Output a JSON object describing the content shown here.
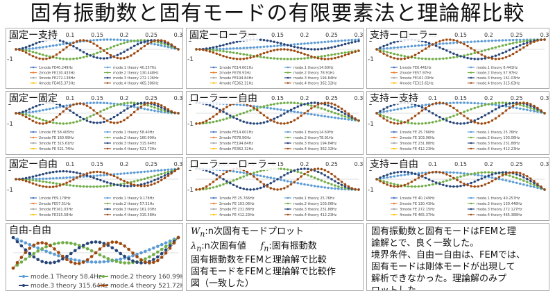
{
  "title": "固有振動数と固有モードの有限要素法と理論解比較",
  "colors": {
    "mode1": "#4472c4",
    "mode2": "#ed7d31",
    "mode3": "#a5a5a5",
    "mode4": "#ffc000",
    "theory1": "#5b9bd5",
    "theory2": "#70ad47",
    "theory3": "#264478",
    "theory4": "#9e480e"
  },
  "chart_data": [
    {
      "type": "line",
      "title": "固定ー支持",
      "bc": "CF",
      "xlim": [
        0,
        0.3
      ],
      "ylim": [
        -1,
        1
      ],
      "x_ticks": [
        "0",
        "0.05",
        "0.1",
        "0.15",
        "0.2",
        "0.25",
        "0.3"
      ],
      "y_ticks": [
        "1",
        "-1"
      ],
      "series": [
        {
          "name": "1mode FE40.249Hz"
        },
        {
          "name": "2mode FE130.433Hz"
        },
        {
          "name": "3mode FE272.138Hz"
        },
        {
          "name": "4mode FE465.373Hz"
        },
        {
          "name": "mode.1 theory 40.257Hz"
        },
        {
          "name": "mode.2 theory 130.448Hz"
        },
        {
          "name": "mode.3 theory 272.126Hz"
        },
        {
          "name": "mode.4 theory 465.386Hz"
        }
      ]
    },
    {
      "type": "line",
      "title": "固定ーローラー",
      "bc": "CR",
      "xlim": [
        0,
        0.3
      ],
      "ylim": [
        -1,
        1
      ],
      "x_ticks": [
        "0",
        "0.05",
        "0.1",
        "0.15",
        "0.2",
        "0.25",
        "0.3"
      ],
      "y_ticks": [
        "1",
        "-1"
      ],
      "series": [
        {
          "name": "1mode FE14.601Hz"
        },
        {
          "name": "2mode FE78.91Hz"
        },
        {
          "name": "3mode FE194.84Hz"
        },
        {
          "name": "4mode FE362.31Hz"
        },
        {
          "name": "mode.1 theory14.60Hz"
        },
        {
          "name": "mode.2 theory 78.91Hz"
        },
        {
          "name": "mode.3 theory 194.84Hz"
        },
        {
          "name": "mode.4 theory 362.32Hz"
        }
      ]
    },
    {
      "type": "line",
      "title": "支持ーローラー",
      "bc": "SR",
      "xlim": [
        0,
        0.3
      ],
      "ylim": [
        -1,
        1
      ],
      "x_ticks": [
        "0",
        "0.05",
        "0.1",
        "0.15",
        "0.2",
        "0.25",
        "0.3"
      ],
      "y_ticks": [
        "1",
        "-1"
      ],
      "series": [
        {
          "name": "1mode FE6.441Hz"
        },
        {
          "name": "2mode FE57.97Hz"
        },
        {
          "name": "3mode FE161.03Hz"
        },
        {
          "name": "4mode FE315.61Hz"
        },
        {
          "name": "mode.1 theory 6.441Hz"
        },
        {
          "name": "mode.2 theory 57.97Hz"
        },
        {
          "name": "mode.3 theory 161.03Hz"
        },
        {
          "name": "mode.4 theory 315.63Hz"
        }
      ]
    },
    {
      "type": "line",
      "title": "固定ー固定",
      "bc": "CC",
      "xlim": [
        0,
        0.3
      ],
      "ylim": [
        -1,
        1
      ],
      "x_ticks": [
        "0",
        "0.05",
        "0.1",
        "0.15",
        "0.2",
        "0.25",
        "0.3"
      ],
      "y_ticks": [
        "1",
        "-1"
      ],
      "series": [
        {
          "name": "1mode FE 58.405Hz"
        },
        {
          "name": "2mode FE 160.99Hz"
        },
        {
          "name": "3mode FE 315.61Hz"
        },
        {
          "name": "4mode FE 521.74Hz"
        },
        {
          "name": "mode.1 theory 58.40Hz"
        },
        {
          "name": "mode.2 theory 160.99Hz"
        },
        {
          "name": "mode.3 theory 315.64Hz"
        },
        {
          "name": "mode.4 theory 521.72Hz"
        }
      ]
    },
    {
      "type": "line",
      "title": "ローラーー自由",
      "bc": "RF",
      "xlim": [
        0,
        0.3
      ],
      "ylim": [
        -1,
        1
      ],
      "x_ticks": [
        "0",
        "0.05",
        "0.1",
        "0.15",
        "0.2",
        "0.25",
        "0.3"
      ],
      "y_ticks": [
        "1",
        "-1"
      ],
      "series": [
        {
          "name": "1mode FE14.601Hz"
        },
        {
          "name": "2mode FE78.90Hz"
        },
        {
          "name": "3mode FE194.84Hz"
        },
        {
          "name": "4mode FE362.32Hz"
        },
        {
          "name": "mode.1 theory14.60Hz"
        },
        {
          "name": "mode.2 theory78.91Hz"
        },
        {
          "name": "mode.3 theory 194.84Hz"
        },
        {
          "name": "mode.4 theory 362.32Hz"
        }
      ]
    },
    {
      "type": "line",
      "title": "支持ー支持",
      "bc": "SS",
      "xlim": [
        0,
        0.3
      ],
      "ylim": [
        -1,
        1
      ],
      "x_ticks": [
        "0",
        "0.05",
        "0.1",
        "0.15",
        "0.2",
        "0.25",
        "0.3"
      ],
      "y_ticks": [
        "1",
        "-1"
      ],
      "series": [
        {
          "name": "1mode FE 25.766Hz"
        },
        {
          "name": "2mode FE 103.06Hz"
        },
        {
          "name": "3mode FE 231.88Hz"
        },
        {
          "name": "4mode FE 412.23Hz"
        },
        {
          "name": "mode.1 theory 25.76Hz"
        },
        {
          "name": "mode.2 theory 103.06Hz"
        },
        {
          "name": "mode.3 theory 231.88Hz"
        },
        {
          "name": "mode.4 theory 412.23Hz"
        }
      ]
    },
    {
      "type": "line",
      "title": "固定ー自由",
      "bc": "CFr",
      "xlim": [
        0,
        0.3
      ],
      "ylim": [
        -1,
        1
      ],
      "x_ticks": [
        "0",
        "0.05",
        "0.1",
        "0.15",
        "0.2",
        "0.25",
        "0.3"
      ],
      "y_ticks": [
        "1",
        "-1"
      ],
      "series": [
        {
          "name": "1mode FE9.178Hz"
        },
        {
          "name": "2mode FE57.51Hz"
        },
        {
          "name": "3mode FE161.03Hz"
        },
        {
          "name": "4mode FE315.58Hz"
        },
        {
          "name": "mode.1 theory 9.178Hz"
        },
        {
          "name": "mode.2 theory 57.51Hz"
        },
        {
          "name": "mode.3 theory 161.03Hz"
        },
        {
          "name": "mode.4 theory 315.58Hz"
        }
      ]
    },
    {
      "type": "line",
      "title": "ローラーーローラー",
      "bc": "RR",
      "xlim": [
        0,
        0.3
      ],
      "ylim": [
        -1,
        1
      ],
      "x_ticks": [
        "0",
        "0.05",
        "0.1",
        "0.15",
        "0.2",
        "0.25",
        "0.3"
      ],
      "y_ticks": [
        "1",
        "-1"
      ],
      "series": [
        {
          "name": "1mode FE 25.766Hz"
        },
        {
          "name": "2mode FE 103.06Hz"
        },
        {
          "name": "3mode FE 231.88Hz"
        },
        {
          "name": "4mode FE 412.23Hz"
        },
        {
          "name": "mode.1 theory 25.76Hz"
        },
        {
          "name": "mode.2 theory 103.06Hz"
        },
        {
          "name": "mode.3 theory 231.88Hz"
        },
        {
          "name": "mode.4 theory 412.23Hz"
        }
      ]
    },
    {
      "type": "line",
      "title": "支持ー自由",
      "bc": "SF",
      "xlim": [
        0,
        0.3
      ],
      "ylim": [
        -1,
        1
      ],
      "x_ticks": [
        "0",
        "0.05",
        "0.1",
        "0.15",
        "0.2",
        "0.25",
        "0.3"
      ],
      "y_ticks": [
        "1",
        "-1"
      ],
      "series": [
        {
          "name": "1mode FE 40.249Hz"
        },
        {
          "name": "2mode FE 130.43Hz"
        },
        {
          "name": "3mode FE 272.15Hz"
        },
        {
          "name": "4mode FE 465.37Hz"
        },
        {
          "name": "mode.1 theory 40.257Hz"
        },
        {
          "name": "mode.2 theory 130.448Hz"
        },
        {
          "name": "mode.3 theory 272.127Hz"
        },
        {
          "name": "mode.4 theory 465.388Hz"
        }
      ]
    },
    {
      "type": "line",
      "title": "自由-自由",
      "bc": "FF",
      "xlim": [
        0,
        0.3
      ],
      "ylim": [
        -1,
        1
      ],
      "x_ticks": [],
      "y_ticks": [],
      "series": [
        {
          "name": "mode.1 Theory 58.4Hz"
        },
        {
          "name": "mode.2 theory 160.99Hz"
        },
        {
          "name": "mode.3 theory 315.64Hz"
        },
        {
          "name": "mode.4 theory 521.72Hz"
        }
      ]
    }
  ],
  "notes": {
    "left": {
      "line1_sym": "W",
      "line1_sub": "n",
      "line1_rest": ":n次固有モードプロット",
      "line2_sym": "λ",
      "line2_sub": "n",
      "line2_rest": ":n次固有値",
      "line2_sym2": "f",
      "line2_sub2": "n",
      "line2_rest2": ":固有振動数",
      "line3": "固有振動数をFEMと理論解で比較",
      "line4": "固有モードをFEMと理論解で比較作",
      "line5": "図（一致した）"
    },
    "right": {
      "line1": "固有振動数と固有モードはFEMと理",
      "line2": "論解とで、良く一致した。",
      "line3": "境界条件、自由ー自由は、FEMでは、",
      "line4": "固有モードは剛体モードが出現して",
      "line5": "解析できなかった。理論解のみプ",
      "line6": "ロットした。"
    }
  }
}
